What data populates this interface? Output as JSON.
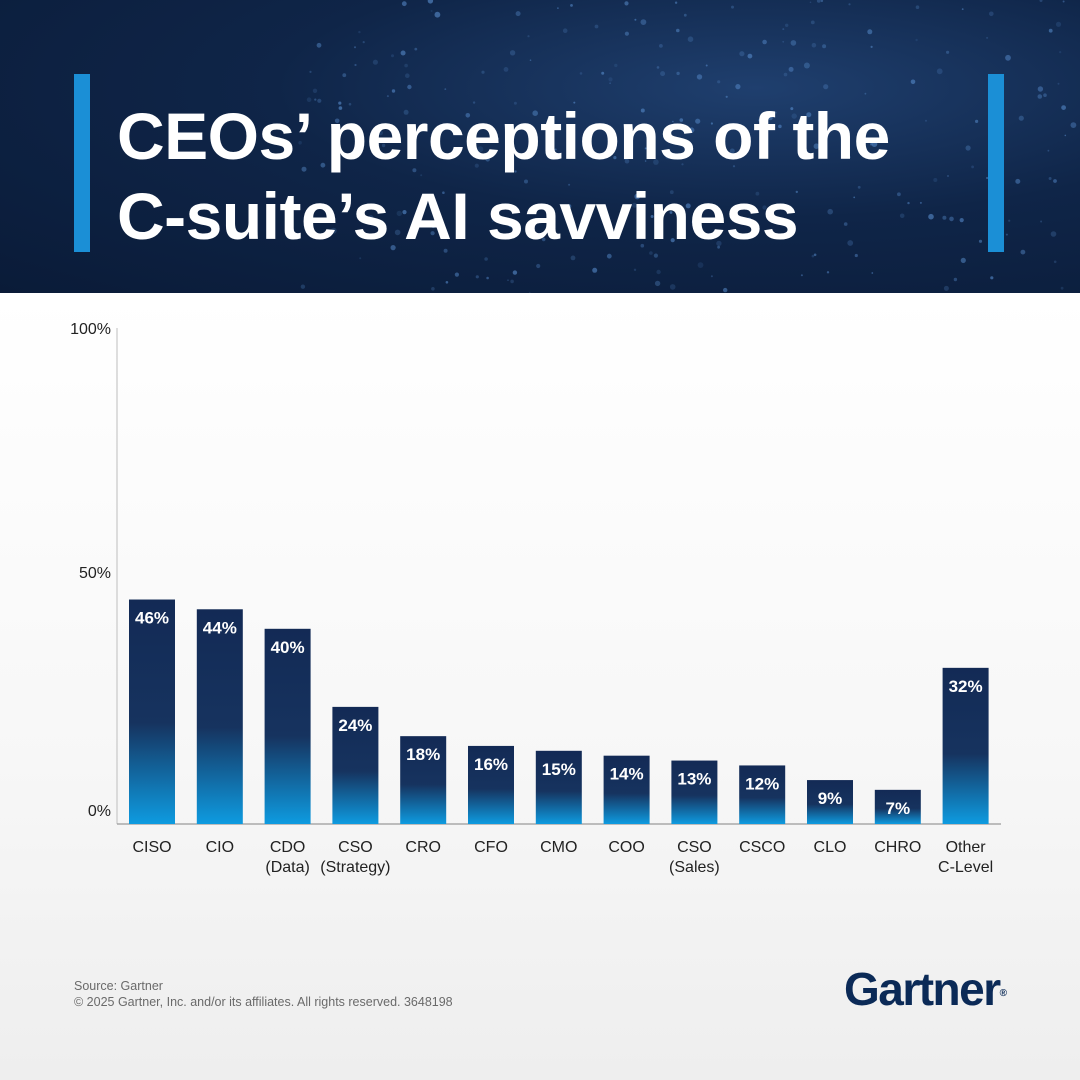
{
  "header": {
    "title_line1": "CEOs’ perceptions of the",
    "title_line2": "C-suite’s AI savviness"
  },
  "colors": {
    "header_bg": "#0a1b38",
    "accent": "#1b8fd6",
    "bar_top": "#132a55",
    "bar_bottom": "#0e9be0",
    "brand": "#0b2a57"
  },
  "chart_data": {
    "type": "bar",
    "categories": [
      [
        "CISO"
      ],
      [
        "CIO"
      ],
      [
        "CDO",
        "(Data)"
      ],
      [
        "CSO",
        "(Strategy)"
      ],
      [
        "CRO"
      ],
      [
        "CFO"
      ],
      [
        "CMO"
      ],
      [
        "COO"
      ],
      [
        "CSO",
        "(Sales)"
      ],
      [
        "CSCO"
      ],
      [
        "CLO"
      ],
      [
        "CHRO"
      ],
      [
        "Other",
        "C-Level"
      ]
    ],
    "values": [
      46,
      44,
      40,
      24,
      18,
      16,
      15,
      14,
      13,
      12,
      9,
      7,
      32
    ],
    "value_labels": [
      "46%",
      "44%",
      "40%",
      "24%",
      "18%",
      "16%",
      "15%",
      "14%",
      "13%",
      "12%",
      "9%",
      "7%",
      "32%"
    ],
    "yticks": [
      "0%",
      "50%",
      "100%"
    ],
    "ytick_values": [
      0,
      50,
      100
    ],
    "ylim": [
      0,
      100
    ],
    "xlabel": "",
    "ylabel": "",
    "grid": false,
    "legend": "none"
  },
  "footer": {
    "source": "Source: Gartner",
    "copyright": "© 2025 Gartner, Inc. and/or its affiliates. All rights reserved. 3648198"
  },
  "logo": {
    "text": "Gartner",
    "mark": "®"
  }
}
